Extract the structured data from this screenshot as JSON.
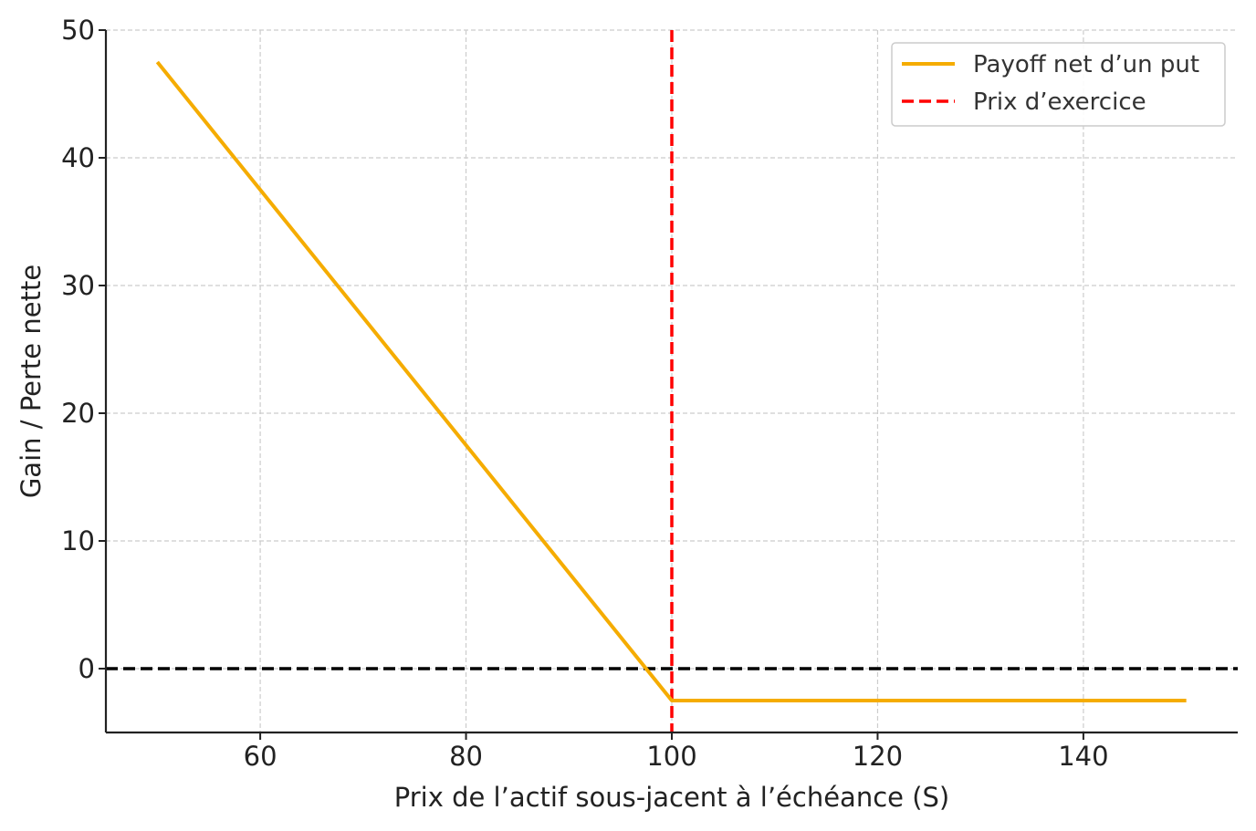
{
  "chart_data": {
    "type": "line",
    "title": "",
    "xlabel": "Prix de l’actif sous-jacent à l’échéance (S)",
    "ylabel": "Gain / Perte nette",
    "xlim": [
      45,
      155
    ],
    "ylim": [
      -5,
      50
    ],
    "x_ticks": [
      60,
      80,
      100,
      120,
      140
    ],
    "y_ticks": [
      0,
      10,
      20,
      30,
      40,
      50
    ],
    "grid": true,
    "legend_position": "upper right",
    "series": [
      {
        "name": "Payoff net d’un put",
        "style": "solid",
        "color": "#f5ac00",
        "x": [
          50,
          100,
          150
        ],
        "y": [
          47.5,
          -2.5,
          -2.5
        ]
      }
    ],
    "reference_lines": [
      {
        "name": "Prix d’exercice",
        "orientation": "vertical",
        "value": 100,
        "style": "dashed",
        "color": "#ff0000"
      },
      {
        "name": "",
        "orientation": "horizontal",
        "value": 0,
        "style": "dashed",
        "color": "#000000"
      }
    ]
  }
}
